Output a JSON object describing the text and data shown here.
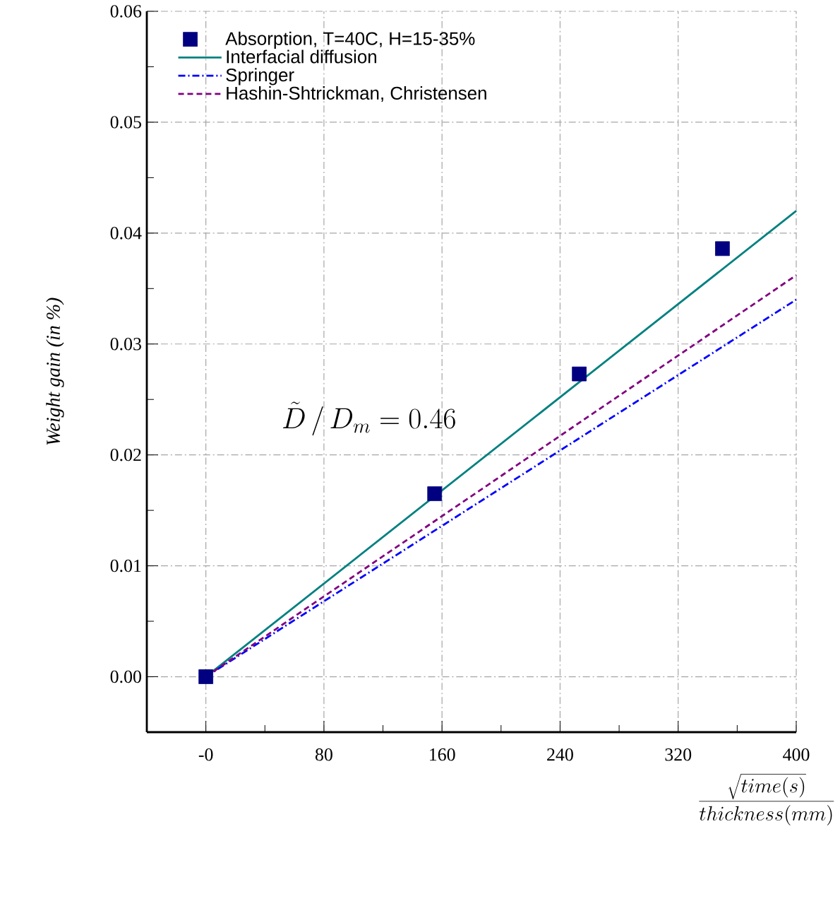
{
  "chart_data": {
    "type": "scatter",
    "xlabel": "\\frac{\\sqrt{time(s)}}{thickness(mm)}",
    "ylabel": "Weight gain (in %)",
    "annotations": [
      "\\tilde{D}\\,/\\,D_m = 0.46"
    ],
    "xlim": [
      -40,
      400
    ],
    "ylim": [
      -0.005,
      0.06
    ],
    "xticks": [
      {
        "value": 0,
        "label": "-0"
      },
      80,
      160,
      240,
      320,
      400
    ],
    "yticks": [
      {
        "value": 0,
        "label": "0.00"
      },
      0.01,
      0.02,
      0.03,
      0.04,
      0.05,
      0.06
    ],
    "grid": true,
    "legend": "top left",
    "series": [
      {
        "name": "Absorption, T=40C, H=15-35%",
        "marker": "square",
        "color": "#000080",
        "x": [
          0,
          155,
          253,
          350
        ],
        "values": [
          0,
          0.0165,
          0.0273,
          0.0386
        ]
      },
      {
        "name": "Interfacial diffusion",
        "type": "line",
        "line_style": "solid",
        "color": "#008080",
        "x": [
          0,
          400
        ],
        "values": [
          0,
          0.042
        ]
      },
      {
        "name": "Springer",
        "type": "line",
        "line_style": "dashdot",
        "color": "#0000ff",
        "x": [
          0,
          400
        ],
        "values": [
          0,
          0.034
        ]
      },
      {
        "name": "Hashin-Shtrickman, Christensen",
        "type": "line",
        "line_style": "dashed",
        "color": "#800080",
        "x": [
          0,
          400
        ],
        "values": [
          0,
          0.0362
        ]
      }
    ]
  }
}
